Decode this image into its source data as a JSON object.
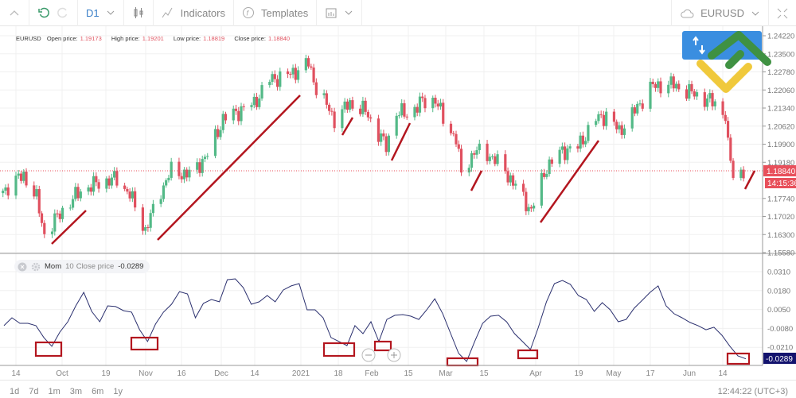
{
  "toolbar": {
    "timeframe": "D1",
    "indicators": "Indicators",
    "templates": "Templates",
    "symbol": "EURUSD"
  },
  "info": {
    "symbol": "EURUSD",
    "open_label": "Open price:",
    "open": "1.19173",
    "high_label": "High price:",
    "high": "1.19201",
    "low_label": "Low price:",
    "low": "1.18819",
    "close_label": "Close price:",
    "close": "1.18840"
  },
  "colors": {
    "up": "#53b987",
    "down": "#e0505f",
    "annotation": "#b3161f",
    "momentum": "#2a2f6e",
    "current_price": "#e8505b",
    "mom_badge": "#13136e"
  },
  "price_axis": {
    "ticks": [
      "1.24220",
      "1.23500",
      "1.22780",
      "1.22060",
      "1.21340",
      "1.20620",
      "1.19900",
      "1.19180",
      "1.17740",
      "1.17020",
      "1.16300",
      "1.15580"
    ],
    "current": "1.18840",
    "countdown": "14:15:36"
  },
  "momentum": {
    "name": "Mom",
    "period": "10",
    "source": "Close price",
    "value": "-0.0289",
    "ticks": [
      "0.0310",
      "0.0180",
      "0.0050",
      "-0.0080",
      "-0.0210"
    ],
    "start": "2020-09-09",
    "end": "2021-06-22",
    "values": [
      -0.0061,
      -0.0007,
      -0.0045,
      -0.0045,
      -0.0061,
      -0.0143,
      -0.0203,
      -0.0105,
      -0.0034,
      0.0075,
      0.0168,
      0.0037,
      -0.0034,
      0.0075,
      0.007,
      0.0042,
      0.0032,
      -0.0089,
      -0.017,
      -0.005,
      0.0032,
      0.0086,
      0.0173,
      0.0157,
      -0.0007,
      0.0092,
      0.0119,
      0.0103,
      0.0255,
      0.0261,
      0.0201,
      0.0086,
      0.0103,
      0.0146,
      0.0103,
      0.0184,
      0.0212,
      0.0228,
      0.0048,
      0.0048,
      -0.0007,
      -0.0143,
      -0.017,
      -0.0198,
      -0.0061,
      -0.0116,
      -0.0034,
      -0.017,
      -0.0018,
      0.001,
      0.0015,
      0.0004,
      -0.0018,
      0.0048,
      0.0124,
      0.0021,
      -0.0116,
      -0.0252,
      -0.0307,
      -0.017,
      -0.0045,
      0.0004,
      0.001,
      -0.0034,
      -0.0116,
      -0.017,
      -0.0225,
      -0.0072,
      0.0103,
      0.0228,
      0.025,
      0.0223,
      0.0146,
      0.0119,
      0.0037,
      0.0097,
      0.0048,
      -0.0034,
      -0.0018,
      0.0059,
      0.0113,
      0.0168,
      0.0212,
      0.0075,
      0.0021,
      -0.0007,
      -0.0039,
      -0.0061,
      -0.0089,
      -0.0072,
      -0.0127,
      -0.0203,
      -0.0269,
      -0.0289
    ]
  },
  "price_path": [
    [
      "2020-09-09",
      1.1805
    ],
    [
      "2020-09-17",
      1.1868
    ],
    [
      "2020-09-22",
      1.1773
    ],
    [
      "2020-09-25",
      1.1631
    ],
    [
      "2020-10-02",
      1.1726
    ],
    [
      "2020-10-09",
      1.1805
    ],
    [
      "2020-10-16",
      1.1837
    ],
    [
      "2020-10-23",
      1.1852
    ],
    [
      "2020-10-28",
      1.1789
    ],
    [
      "2020-11-03",
      1.1647
    ],
    [
      "2020-11-09",
      1.1805
    ],
    [
      "2020-11-13",
      1.1884
    ],
    [
      "2020-11-20",
      1.1868
    ],
    [
      "2020-11-27",
      1.1947
    ],
    [
      "2020-12-03",
      1.209
    ],
    [
      "2020-12-09",
      1.2121
    ],
    [
      "2020-12-15",
      1.2153
    ],
    [
      "2020-12-21",
      1.2248
    ],
    [
      "2020-12-28",
      1.2264
    ],
    [
      "2021-01-05",
      1.2311
    ],
    [
      "2021-01-08",
      1.2216
    ],
    [
      "2021-01-15",
      1.209
    ],
    [
      "2021-01-21",
      1.2153
    ],
    [
      "2021-01-27",
      1.2121
    ],
    [
      "2021-02-04",
      1.1979
    ],
    [
      "2021-02-08",
      1.2121
    ],
    [
      "2021-02-12",
      1.2106
    ],
    [
      "2021-02-17",
      1.2153
    ],
    [
      "2021-02-23",
      1.2169
    ],
    [
      "2021-02-26",
      1.209
    ],
    [
      "2021-03-03",
      1.2011
    ],
    [
      "2021-03-05",
      1.1868
    ],
    [
      "2021-03-10",
      1.1963
    ],
    [
      "2021-03-16",
      1.1947
    ],
    [
      "2021-03-22",
      1.1884
    ],
    [
      "2021-03-29",
      1.1773
    ],
    [
      "2021-04-01",
      1.1726
    ],
    [
      "2021-04-07",
      1.19
    ],
    [
      "2021-04-13",
      1.1963
    ],
    [
      "2021-04-19",
      1.1979
    ],
    [
      "2021-04-26",
      1.209
    ],
    [
      "2021-04-30",
      1.2106
    ],
    [
      "2021-05-05",
      1.2042
    ],
    [
      "2021-05-11",
      1.2121
    ],
    [
      "2021-05-17",
      1.2216
    ],
    [
      "2021-05-24",
      1.2232
    ],
    [
      "2021-05-28",
      1.2216
    ],
    [
      "2021-06-04",
      1.2185
    ],
    [
      "2021-06-11",
      1.2153
    ],
    [
      "2021-06-15",
      1.2106
    ],
    [
      "2021-06-16",
      1.1979
    ],
    [
      "2021-06-18",
      1.1868
    ],
    [
      "2021-06-22",
      1.1884
    ]
  ],
  "date_axis": [
    "14",
    "Oct",
    "19",
    "Nov",
    "16",
    "Dec",
    "14",
    "2021",
    "18",
    "Feb",
    "15",
    "Mar",
    "15",
    "Apr",
    "19",
    "May",
    "17",
    "Jun",
    "14"
  ],
  "ranges": [
    "1d",
    "7d",
    "1m",
    "3m",
    "6m",
    "1y"
  ],
  "clock": "12:44:22 (UTC+3)"
}
